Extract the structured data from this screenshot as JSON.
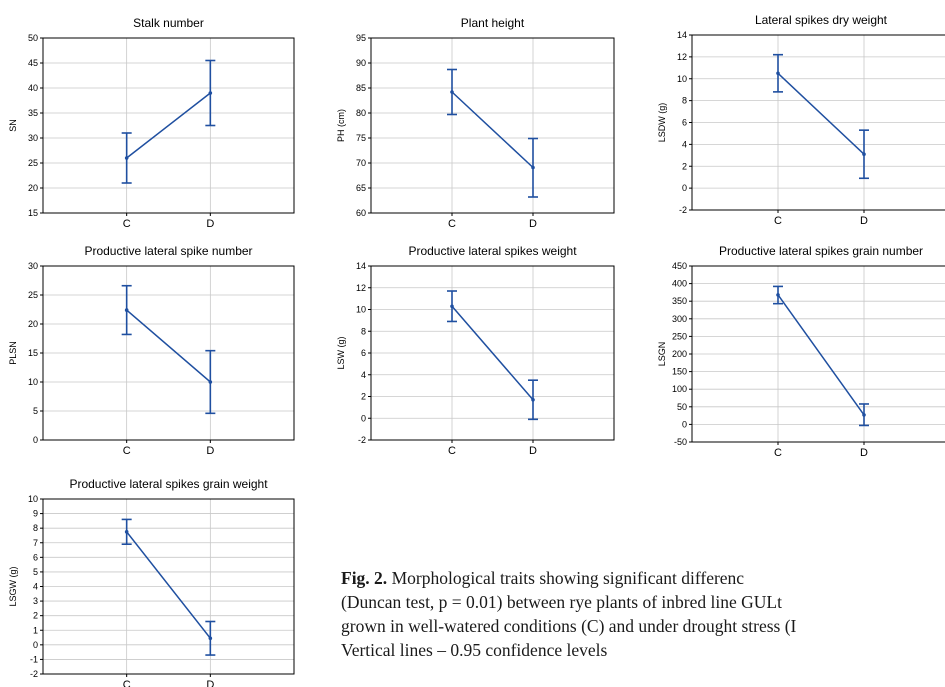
{
  "chart_data": [
    {
      "type": "line",
      "title": "Stalk number",
      "xlabel": "",
      "ylabel": "SN",
      "categories": [
        "C",
        "D"
      ],
      "ylim": [
        15,
        50
      ],
      "yticks": [
        15,
        20,
        25,
        30,
        35,
        40,
        45,
        50
      ],
      "values": [
        26.0,
        39.0
      ],
      "ci_low": [
        21.0,
        32.5
      ],
      "ci_high": [
        31.0,
        45.5
      ],
      "grid": true
    },
    {
      "type": "line",
      "title": "Plant height",
      "xlabel": "",
      "ylabel": "PH (cm)",
      "categories": [
        "C",
        "D"
      ],
      "ylim": [
        60,
        95
      ],
      "yticks": [
        60,
        65,
        70,
        75,
        80,
        85,
        90,
        95
      ],
      "values": [
        84.2,
        69.1
      ],
      "ci_low": [
        79.7,
        63.2
      ],
      "ci_high": [
        88.7,
        74.9
      ],
      "grid": true
    },
    {
      "type": "line",
      "title": "Lateral spikes dry weight",
      "xlabel": "",
      "ylabel": "LSDW (g)",
      "categories": [
        "C",
        "D"
      ],
      "ylim": [
        -2,
        14
      ],
      "yticks": [
        -2,
        0,
        2,
        4,
        6,
        8,
        10,
        12,
        14
      ],
      "values": [
        10.5,
        3.1
      ],
      "ci_low": [
        8.8,
        0.9
      ],
      "ci_high": [
        12.2,
        5.3
      ],
      "grid": true
    },
    {
      "type": "line",
      "title": "Productive lateral spike number",
      "xlabel": "",
      "ylabel": "PLSN",
      "categories": [
        "C",
        "D"
      ],
      "ylim": [
        0,
        30
      ],
      "yticks": [
        0,
        5,
        10,
        15,
        20,
        25,
        30
      ],
      "values": [
        22.4,
        10.0
      ],
      "ci_low": [
        18.2,
        4.6
      ],
      "ci_high": [
        26.6,
        15.4
      ],
      "grid": true
    },
    {
      "type": "line",
      "title": "Productive lateral spikes weight",
      "xlabel": "",
      "ylabel": "LSW (g)",
      "categories": [
        "C",
        "D"
      ],
      "ylim": [
        -2,
        14
      ],
      "yticks": [
        -2,
        0,
        2,
        4,
        6,
        8,
        10,
        12,
        14
      ],
      "values": [
        10.3,
        1.7
      ],
      "ci_low": [
        8.9,
        -0.1
      ],
      "ci_high": [
        11.7,
        3.5
      ],
      "grid": true
    },
    {
      "type": "line",
      "title": "Productive lateral spikes grain number",
      "xlabel": "",
      "ylabel": "LSGN",
      "categories": [
        "C",
        "D"
      ],
      "ylim": [
        -50,
        450
      ],
      "yticks": [
        -50,
        0,
        50,
        100,
        150,
        200,
        250,
        300,
        350,
        400,
        450
      ],
      "values": [
        368,
        27
      ],
      "ci_low": [
        343,
        -3
      ],
      "ci_high": [
        392,
        58
      ],
      "grid": true
    },
    {
      "type": "line",
      "title": "Productive lateral spikes grain weight",
      "xlabel": "",
      "ylabel": "LSGW (g)",
      "categories": [
        "C",
        "D"
      ],
      "ylim": [
        -2,
        10
      ],
      "yticks": [
        -2,
        -1,
        0,
        1,
        2,
        3,
        4,
        5,
        6,
        7,
        8,
        9,
        10
      ],
      "values": [
        7.75,
        0.45
      ],
      "ci_low": [
        6.9,
        -0.7
      ],
      "ci_high": [
        8.6,
        1.6
      ],
      "grid": true
    }
  ],
  "caption": {
    "label": "Fig. 2.",
    "lines": [
      "Morphological traits showing significant differenc",
      "(Duncan test, p = 0.01) between rye plants of inbred line GULt",
      "grown in well-watered conditions (C) and under drought stress (I",
      "Vertical lines – 0.95 confidence levels"
    ]
  },
  "colors": {
    "series": "#1f4fa0",
    "grid": "#c8c8c8",
    "axis": "#000000"
  }
}
